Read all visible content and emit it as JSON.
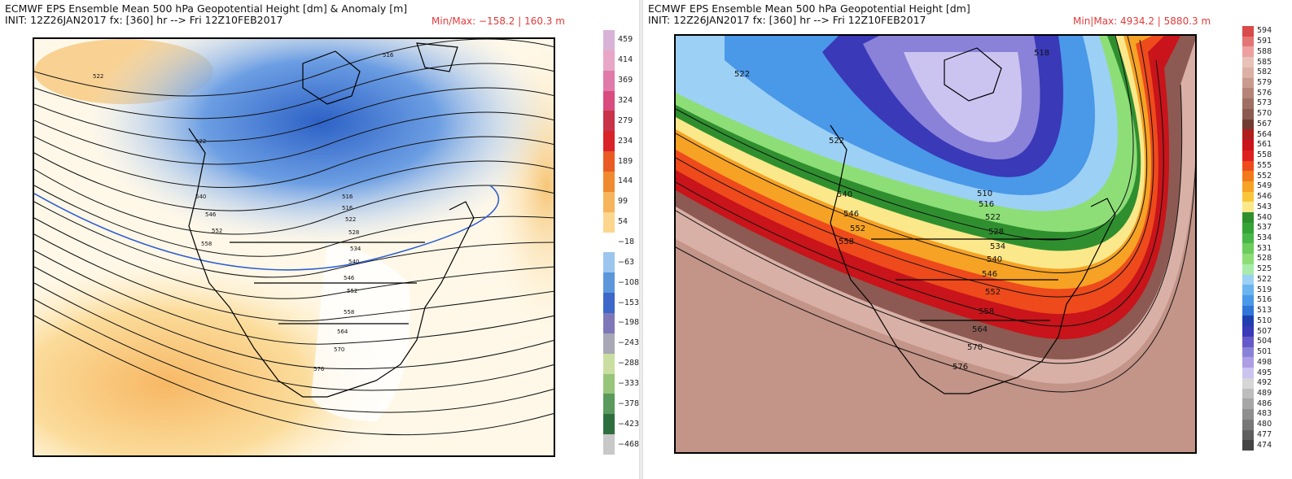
{
  "left": {
    "title_line1": "ECMWF EPS Ensemble Mean 500 hPa Geopotential Height [dm] & Anomaly [m]",
    "title_line2": "INIT: 12Z26JAN2017 fx: [360] hr --> Fri 12Z10FEB2017",
    "minmax": "Min/Max: −158.2 | 160.3 m",
    "colorbar": {
      "labels": [
        "459",
        "414",
        "369",
        "324",
        "279",
        "234",
        "189",
        "144",
        "99",
        "54",
        "−18",
        "−63",
        "−108",
        "−153",
        "−198",
        "−243",
        "−288",
        "−333",
        "−378",
        "−423",
        "−468"
      ],
      "colors": [
        "#d9b3d6",
        "#e8a7c6",
        "#e07aa8",
        "#d94c80",
        "#c93249",
        "#d8232a",
        "#ea5a23",
        "#f08a2f",
        "#f6b45c",
        "#fbd68c",
        "#ffffff",
        "#9cc6ef",
        "#5c97db",
        "#3d67c9",
        "#7f78b8",
        "#a7a7b5",
        "#c9dea0",
        "#97c57a",
        "#5a9a5c",
        "#2f6e3f",
        "#c8c8c8"
      ],
      "contour_labels": [
        "516",
        "522",
        "528",
        "540",
        "546",
        "552",
        "558",
        "564",
        "570",
        "576"
      ]
    }
  },
  "right": {
    "title_line1": "ECMWF EPS Ensemble Mean 500 hPa Geopotential Height [dm]",
    "title_line2": "INIT: 12Z26JAN2017 fx: [360] hr --> Fri 12Z10FEB2017",
    "minmax": "Min|Max: 4934.2 | 5880.3 m",
    "colorbar": {
      "labels": [
        "594",
        "591",
        "588",
        "585",
        "582",
        "579",
        "576",
        "573",
        "570",
        "567",
        "564",
        "561",
        "558",
        "555",
        "552",
        "549",
        "546",
        "543",
        "540",
        "537",
        "534",
        "531",
        "528",
        "525",
        "522",
        "519",
        "516",
        "513",
        "510",
        "507",
        "504",
        "501",
        "498",
        "495",
        "492",
        "489",
        "486",
        "483",
        "480",
        "477",
        "474"
      ],
      "colors": [
        "#d94a4a",
        "#e37575",
        "#eda0a0",
        "#e8c2b8",
        "#dcb0a5",
        "#c99a8e",
        "#b58478",
        "#a06f64",
        "#8b5b51",
        "#6f3c33",
        "#b01e1e",
        "#c8141a",
        "#df2020",
        "#ee4a1c",
        "#f27a1a",
        "#f6a224",
        "#f8c63a",
        "#fbe88a",
        "#2f8f2f",
        "#36a336",
        "#47b847",
        "#6ccc5c",
        "#8ede78",
        "#a8ecab",
        "#9dd0f5",
        "#6ab4ef",
        "#4a98e8",
        "#2f76d8",
        "#1f3fae",
        "#3a39b8",
        "#6659c9",
        "#8a82d9",
        "#ad9ee5",
        "#ccc4f0",
        "#d6d6d6",
        "#bdbdbd",
        "#a6a6a6",
        "#8f8f8f",
        "#777777",
        "#5e5e5e",
        "#444444"
      ],
      "contour_labels": [
        "518",
        "522",
        "522",
        "540",
        "546",
        "552",
        "558",
        "510",
        "516",
        "522",
        "528",
        "534",
        "540",
        "546",
        "552",
        "558",
        "564",
        "570",
        "576"
      ]
    }
  }
}
